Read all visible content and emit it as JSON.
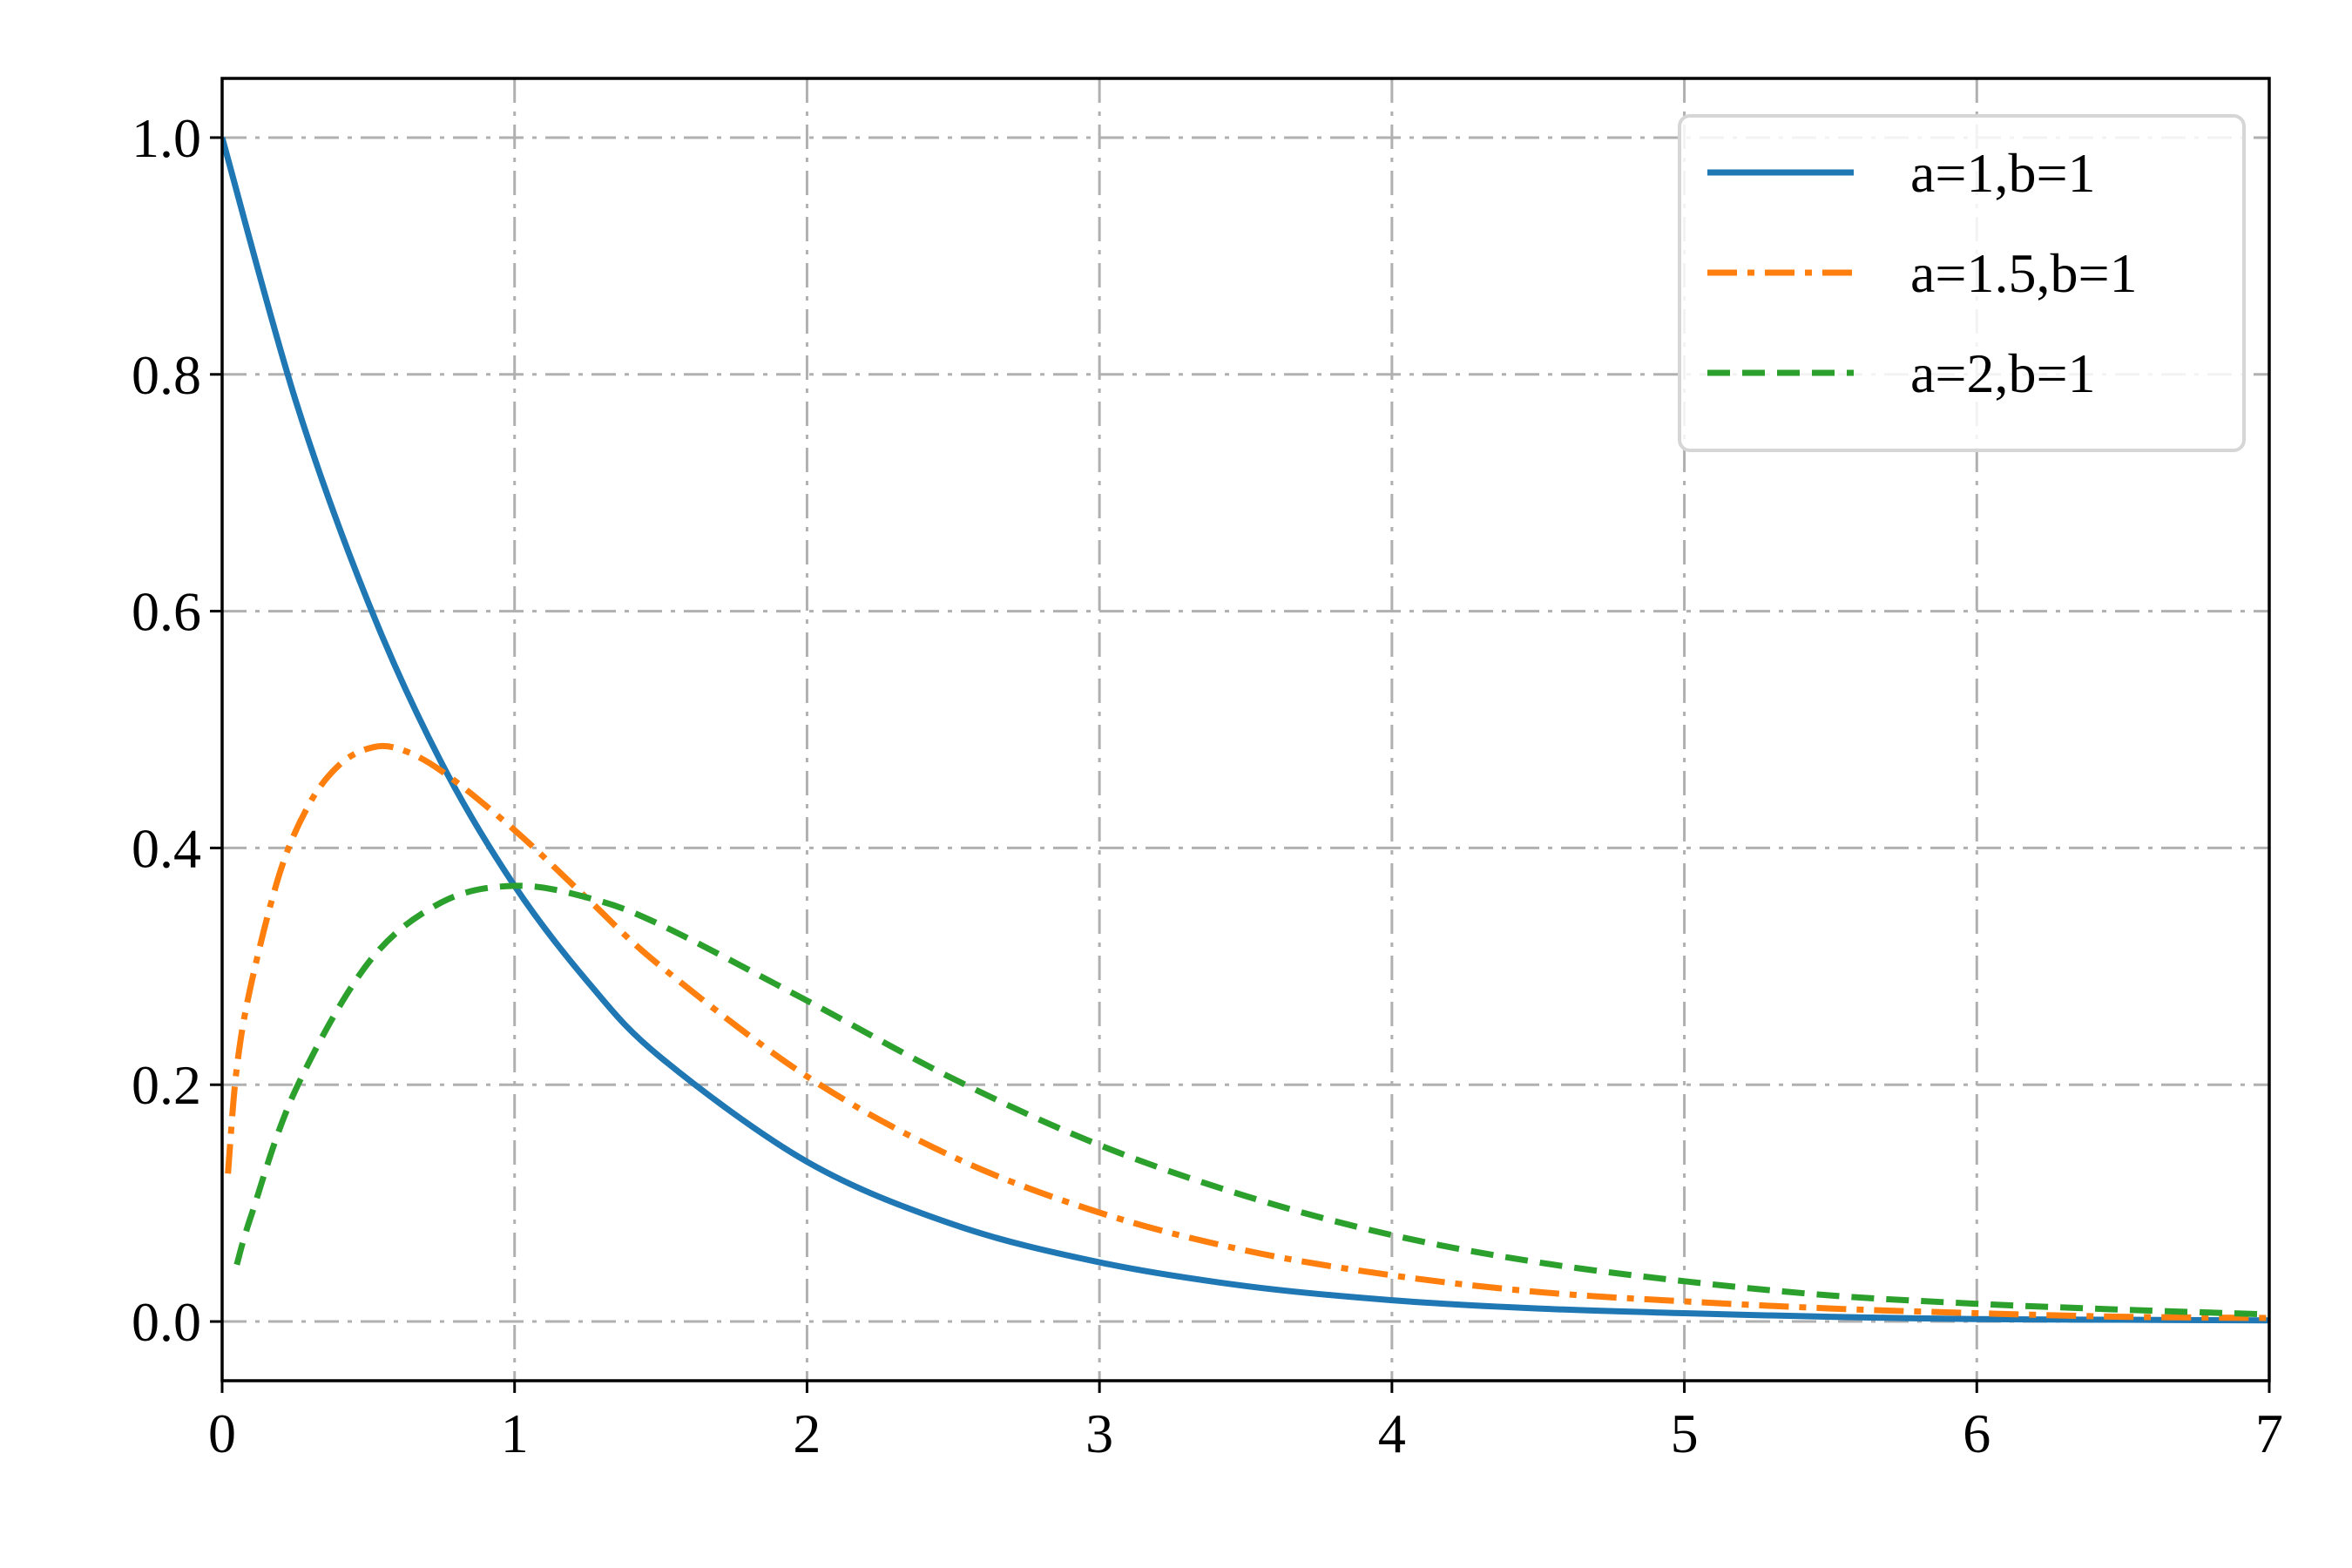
{
  "chart_data": {
    "type": "line",
    "title": "",
    "xlabel": "",
    "ylabel": "",
    "xlim": [
      0,
      7
    ],
    "ylim": [
      -0.05,
      1.05
    ],
    "xticks": [
      "0",
      "1",
      "2",
      "3",
      "4",
      "5",
      "6",
      "7"
    ],
    "yticks": [
      "0.0",
      "0.2",
      "0.4",
      "0.6",
      "0.8",
      "1.0"
    ],
    "grid": true,
    "legend_position": "top-right",
    "series": [
      {
        "name": "a=1,b=1",
        "color": "#1f77b4",
        "style": "solid",
        "x": [
          0,
          0.25,
          0.5,
          0.75,
          1,
          1.25,
          1.5,
          2,
          2.5,
          3,
          3.5,
          4,
          4.5,
          5,
          5.5,
          6,
          6.5,
          7
        ],
        "y": [
          1.0,
          0.779,
          0.607,
          0.472,
          0.368,
          0.287,
          0.223,
          0.135,
          0.082,
          0.05,
          0.03,
          0.018,
          0.011,
          0.007,
          0.004,
          0.002,
          0.0015,
          0.0009
        ]
      },
      {
        "name": "a=1.5,b=1",
        "color": "#ff7f0e",
        "style": "dashdot",
        "x": [
          0.02,
          0.05,
          0.1,
          0.2,
          0.3,
          0.4,
          0.5,
          0.6,
          0.75,
          1,
          1.25,
          1.5,
          2,
          2.5,
          3,
          3.5,
          4,
          4.5,
          5,
          5.5,
          6,
          6.5,
          7
        ],
        "y": [
          0.125,
          0.214,
          0.286,
          0.381,
          0.438,
          0.47,
          0.484,
          0.484,
          0.465,
          0.415,
          0.357,
          0.3,
          0.207,
          0.139,
          0.092,
          0.06,
          0.039,
          0.025,
          0.017,
          0.011,
          0.007,
          0.004,
          0.003
        ]
      },
      {
        "name": "a=2,b=1",
        "color": "#2ca02c",
        "style": "dashed",
        "x": [
          0.05,
          0.1,
          0.25,
          0.5,
          0.75,
          1,
          1.25,
          1.5,
          2,
          2.5,
          3,
          3.5,
          4,
          4.5,
          5,
          5.5,
          6,
          6.5,
          7
        ],
        "y": [
          0.048,
          0.09,
          0.195,
          0.303,
          0.354,
          0.368,
          0.358,
          0.335,
          0.271,
          0.205,
          0.149,
          0.106,
          0.073,
          0.05,
          0.034,
          0.022,
          0.015,
          0.01,
          0.006
        ]
      }
    ]
  }
}
